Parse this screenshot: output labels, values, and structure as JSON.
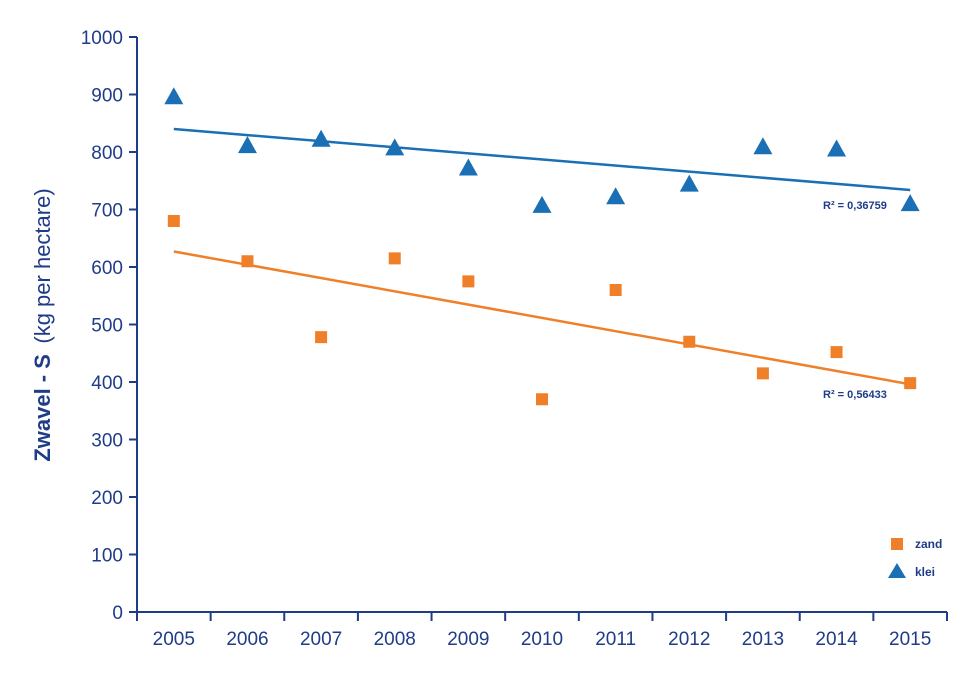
{
  "chart_data": {
    "type": "scatter",
    "x": [
      "2005",
      "2006",
      "2007",
      "2008",
      "2009",
      "2010",
      "2011",
      "2012",
      "2013",
      "2014",
      "2015"
    ],
    "ylabel": {
      "bold": "Zwavel - S",
      "normal": "(kg per hectare)"
    },
    "ylim": [
      0,
      1000
    ],
    "yticks": [
      "0",
      "100",
      "200",
      "300",
      "400",
      "500",
      "600",
      "700",
      "800",
      "900",
      "1000"
    ],
    "grid": false,
    "legend_position": "bottom-right",
    "series": [
      {
        "name": "zand",
        "marker": "square",
        "color": "#f07f2a",
        "values": [
          680,
          610,
          478,
          615,
          575,
          370,
          560,
          470,
          415,
          452,
          398
        ],
        "trend": {
          "start": 627,
          "end": 396
        },
        "r2": "R² = 0,56433"
      },
      {
        "name": "klei",
        "marker": "triangle",
        "color": "#1a6fb5",
        "values": [
          897,
          812,
          823,
          808,
          773,
          708,
          723,
          745,
          810,
          806,
          711
        ],
        "trend": {
          "start": 840,
          "end": 734
        },
        "r2": "R² = 0,36759"
      }
    ]
  }
}
